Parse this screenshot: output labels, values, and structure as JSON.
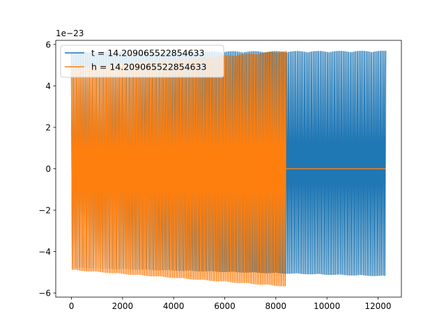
{
  "chart_data": {
    "type": "line",
    "title": "",
    "xlabel": "",
    "ylabel": "",
    "offset_text": "1e−23",
    "xlim": [
      -615,
      12915
    ],
    "ylim": [
      -6.2,
      6.2
    ],
    "xticks": [
      0,
      2000,
      4000,
      6000,
      8000,
      10000,
      12000
    ],
    "yticks": [
      -6,
      -4,
      -2,
      0,
      2,
      4,
      6
    ],
    "grid": false,
    "legend": {
      "placement": "top-left",
      "entries": [
        {
          "label": "t = 14.209065522854633",
          "color": "#1f77b4"
        },
        {
          "label": "h = 14.209065522854633",
          "color": "#ff7f0e"
        }
      ]
    },
    "series": [
      {
        "name": "t = 14.209065522854633",
        "color": "#1f77b4",
        "x_range": [
          0,
          12300
        ],
        "amplitude_start": 5.65,
        "amplitude_end": 5.7,
        "min_amplitude_start": 4.8,
        "min_amplitude_end": 5.2,
        "cycles": 178,
        "description_values": {
          "y_min": -5.65,
          "y_max": 5.75
        }
      },
      {
        "name": "h = 14.209065522854633",
        "color": "#ff7f0e",
        "x_range": [
          0,
          8400
        ],
        "amplitude_start": 4.9,
        "amplitude_end": 5.7,
        "cycles": 122,
        "flat_after": {
          "x_from": 8400,
          "x_to": 12300,
          "y": 0.0
        },
        "description_values": {
          "y_min": -5.7,
          "y_max": 5.7
        }
      }
    ]
  }
}
